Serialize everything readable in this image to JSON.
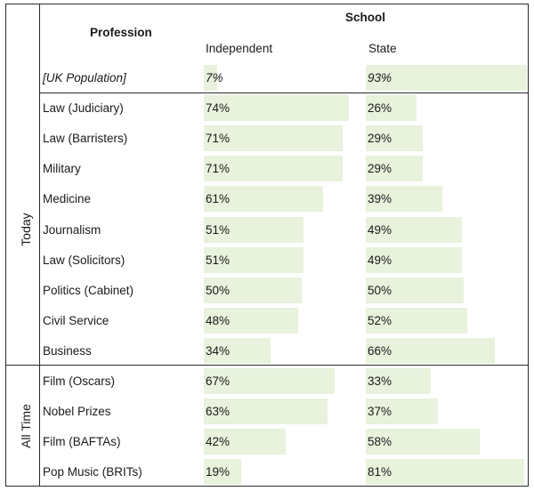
{
  "header": {
    "school": "School",
    "profession": "Profession",
    "independent": "Independent",
    "state": "State"
  },
  "colors": {
    "bar": "#e8f2dc",
    "rule": "#2a2a2a"
  },
  "chart_data": {
    "type": "table",
    "columns": [
      "Independent",
      "State"
    ],
    "rows": [
      {
        "group": "",
        "label": "[UK Population]",
        "italic": true,
        "independent": 7,
        "state": 93,
        "independent_label": "7%",
        "state_label": "93%"
      },
      {
        "group": "Today",
        "label": "Law (Judiciary)",
        "independent": 74,
        "state": 26,
        "independent_label": "74%",
        "state_label": "26%"
      },
      {
        "group": "Today",
        "label": "Law (Barristers)",
        "independent": 71,
        "state": 29,
        "independent_label": "71%",
        "state_label": "29%"
      },
      {
        "group": "Today",
        "label": "Military",
        "independent": 71,
        "state": 29,
        "independent_label": "71%",
        "state_label": "29%"
      },
      {
        "group": "Today",
        "label": "Medicine",
        "independent": 61,
        "state": 39,
        "independent_label": "61%",
        "state_label": "39%"
      },
      {
        "group": "Today",
        "label": "Journalism",
        "independent": 51,
        "state": 49,
        "independent_label": "51%",
        "state_label": "49%"
      },
      {
        "group": "Today",
        "label": "Law (Solicitors)",
        "independent": 51,
        "state": 49,
        "independent_label": "51%",
        "state_label": "49%"
      },
      {
        "group": "Today",
        "label": "Politics (Cabinet)",
        "independent": 50,
        "state": 50,
        "independent_label": "50%",
        "state_label": "50%"
      },
      {
        "group": "Today",
        "label": "Civil Service",
        "independent": 48,
        "state": 52,
        "independent_label": "48%",
        "state_label": "52%"
      },
      {
        "group": "Today",
        "label": "Business",
        "independent": 34,
        "state": 66,
        "independent_label": "34%",
        "state_label": "66%"
      },
      {
        "group": "All Time",
        "label": "Film (Oscars)",
        "independent": 67,
        "state": 33,
        "independent_label": "67%",
        "state_label": "33%"
      },
      {
        "group": "All Time",
        "label": "Nobel Prizes",
        "independent": 63,
        "state": 37,
        "independent_label": "63%",
        "state_label": "37%"
      },
      {
        "group": "All Time",
        "label": "Film (BAFTAs)",
        "independent": 42,
        "state": 58,
        "independent_label": "42%",
        "state_label": "58%"
      },
      {
        "group": "All Time",
        "label": "Pop Music (BRITs)",
        "independent": 19,
        "state": 81,
        "independent_label": "19%",
        "state_label": "81%"
      }
    ],
    "groups": [
      "Today",
      "All Time"
    ],
    "scale_max": 100
  }
}
